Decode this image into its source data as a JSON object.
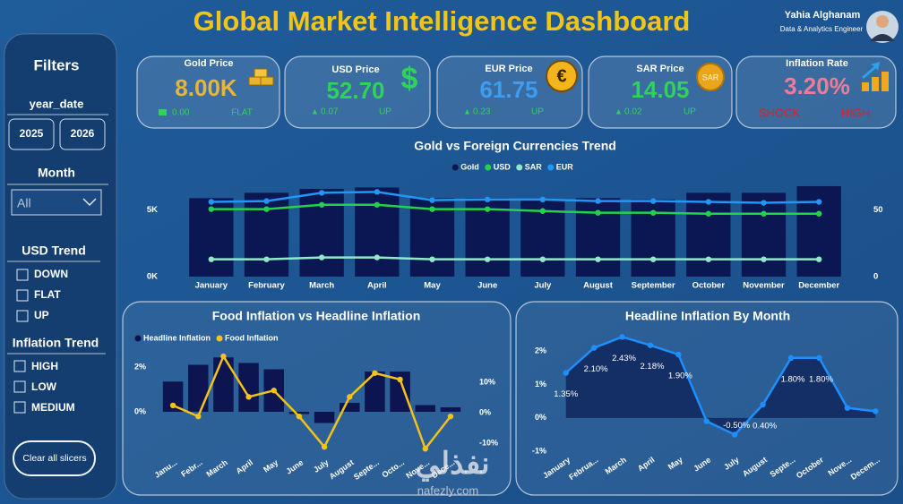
{
  "header": {
    "title": "Global Market Intelligence Dashboard",
    "user_name": "Yahia Alghanam",
    "user_role": "Data & Analytics Engineer"
  },
  "sidebar": {
    "title": "Filters",
    "year_label": "year_date",
    "years": [
      "2025",
      "2026"
    ],
    "month_label": "Month",
    "month_value": "All",
    "usd_trend_label": "USD Trend",
    "usd_trend_options": [
      "DOWN",
      "FLAT",
      "UP"
    ],
    "inflation_trend_label": "Inflation Trend",
    "inflation_trend_options": [
      "HIGH",
      "LOW",
      "MEDIUM"
    ],
    "clear_button": "Clear all slicers"
  },
  "kpis": [
    {
      "label": "Gold Price",
      "value": "8.00K",
      "change": "0.00",
      "trend": "FLAT"
    },
    {
      "label": "USD Price",
      "value": "52.70",
      "icon": "$",
      "arrow": "▲",
      "change": "0.07",
      "trend": "UP"
    },
    {
      "label": "EUR Price",
      "value": "61.75",
      "icon": "€",
      "arrow": "▲",
      "change": "0.23",
      "trend": "UP"
    },
    {
      "label": "SAR Price",
      "value": "14.05",
      "icon": "SAR",
      "arrow": "▲",
      "change": "0.02",
      "trend": "UP"
    },
    {
      "label": "Inflation Rate",
      "value": "3.20%",
      "change": "SHOCK",
      "trend": "HIGH"
    }
  ],
  "chart_data": [
    {
      "type": "combo",
      "title": "Gold vs Foreign Currencies Trend",
      "categories": [
        "January",
        "February",
        "March",
        "April",
        "May",
        "June",
        "July",
        "August",
        "September",
        "October",
        "November",
        "December"
      ],
      "series": [
        {
          "name": "Gold",
          "type": "bar",
          "color": "#0b1752",
          "values": [
            5900,
            6300,
            6600,
            6700,
            5900,
            5900,
            5800,
            5900,
            5800,
            6300,
            6300,
            6800
          ]
        },
        {
          "name": "USD",
          "type": "line",
          "axis": "y2",
          "color": "#22d34a",
          "values": [
            50.7,
            50.7,
            54,
            54,
            50.7,
            50.7,
            49.3,
            48,
            48,
            47.3,
            47.3,
            47.3
          ]
        },
        {
          "name": "SAR",
          "type": "line",
          "axis": "y2",
          "color": "#8fe8c8",
          "values": [
            13,
            13,
            14.4,
            14.4,
            13,
            13,
            13,
            13,
            13,
            13,
            13,
            13
          ]
        },
        {
          "name": "EUR",
          "type": "line",
          "axis": "y2",
          "color": "#2196f3",
          "values": [
            56.2,
            56.8,
            63,
            63.7,
            57.5,
            58,
            58,
            56.8,
            56.8,
            56.2,
            55.5,
            56.2
          ]
        }
      ],
      "ylim": [
        0,
        7000
      ],
      "yticks": [
        {
          "value": 0,
          "label": "0K"
        },
        {
          "value": 5000,
          "label": "5K"
        }
      ],
      "y2lim": [
        0,
        70
      ],
      "y2ticks": [
        0,
        50
      ]
    },
    {
      "type": "combo",
      "title": "Food Inflation vs Headline Inflation",
      "categories": [
        "Janu...",
        "Febr...",
        "March",
        "April",
        "May",
        "June",
        "July",
        "August",
        "Septe...",
        "Octo...",
        "Nove...",
        "Dece..."
      ],
      "series": [
        {
          "name": "Headline Inflation",
          "type": "bar",
          "color": "#0d1550",
          "values": [
            1.35,
            2.1,
            2.43,
            2.18,
            1.9,
            -0.1,
            -0.5,
            0.4,
            1.8,
            1.8,
            0.3,
            0.2
          ]
        },
        {
          "name": "Food Inflation",
          "type": "line",
          "axis": "y2",
          "color": "#f4c21b",
          "values": [
            2.4,
            -1.2,
            18.5,
            5.2,
            7.3,
            -1.2,
            -11.2,
            5.2,
            13,
            10.9,
            -11.8,
            -1.2
          ]
        }
      ],
      "ylim": [
        -1.8,
        2.6
      ],
      "yticks": [
        {
          "value": 0,
          "label": "0%"
        },
        {
          "value": 2,
          "label": "2%"
        }
      ],
      "y2lim": [
        -12.9,
        19.4
      ],
      "y2ticks": [
        {
          "value": -10,
          "label": "-10%"
        },
        {
          "value": 0,
          "label": "0%"
        },
        {
          "value": 10,
          "label": "10%"
        }
      ]
    },
    {
      "type": "area",
      "title": "Headline Inflation By Month",
      "categories": [
        "January",
        "Februa...",
        "March",
        "April",
        "May",
        "June",
        "July",
        "August",
        "Septe...",
        "October",
        "Nove...",
        "Decem..."
      ],
      "values": [
        1.35,
        2.1,
        2.43,
        2.18,
        1.9,
        -0.1,
        -0.5,
        0.4,
        1.8,
        1.8,
        0.3,
        0.2
      ],
      "value_labels": [
        "1.35%",
        "2.10%",
        "2.43%",
        "2.18%",
        "1.90%",
        null,
        "-0.50%",
        "0.40%",
        "1.80%",
        "1.80%",
        null,
        null
      ],
      "color": "#1e8fff",
      "area_color": "#142f66",
      "ylim": [
        -1.4,
        2.6
      ],
      "yticks": [
        {
          "value": -1,
          "label": "-1%"
        },
        {
          "value": 0,
          "label": "0%"
        },
        {
          "value": 1,
          "label": "1%"
        },
        {
          "value": 2,
          "label": "2%"
        }
      ]
    }
  ],
  "watermark": {
    "text": "نفذلي",
    "url": "nafezly.com"
  }
}
